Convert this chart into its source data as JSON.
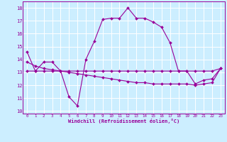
{
  "xlabel": "Windchill (Refroidissement éolien,°C)",
  "hours": [
    0,
    1,
    2,
    3,
    4,
    5,
    6,
    7,
    8,
    9,
    10,
    11,
    12,
    13,
    14,
    15,
    16,
    17,
    18,
    19,
    20,
    21,
    22,
    23
  ],
  "temp": [
    14.6,
    13.1,
    13.8,
    13.8,
    13.1,
    11.1,
    10.4,
    14.0,
    15.4,
    17.1,
    17.2,
    17.2,
    18.0,
    17.2,
    17.2,
    16.9,
    16.5,
    15.3,
    13.1,
    13.1,
    12.1,
    12.4,
    12.5,
    13.3
  ],
  "windchill1": [
    13.1,
    13.1,
    13.1,
    13.1,
    13.1,
    13.1,
    13.1,
    13.1,
    13.1,
    13.1,
    13.1,
    13.1,
    13.1,
    13.1,
    13.1,
    13.1,
    13.1,
    13.1,
    13.1,
    13.1,
    13.1,
    13.1,
    13.1,
    13.3
  ],
  "windchill2": [
    13.8,
    13.5,
    13.3,
    13.2,
    13.1,
    13.0,
    12.9,
    12.8,
    12.7,
    12.6,
    12.5,
    12.4,
    12.3,
    12.2,
    12.2,
    12.1,
    12.1,
    12.1,
    12.1,
    12.1,
    12.0,
    12.1,
    12.2,
    13.3
  ],
  "line_color": "#990099",
  "bg_color": "#cceeff",
  "grid_color": "#ffffff",
  "ylim": [
    9.8,
    18.5
  ],
  "yticks": [
    10,
    11,
    12,
    13,
    14,
    15,
    16,
    17,
    18
  ]
}
